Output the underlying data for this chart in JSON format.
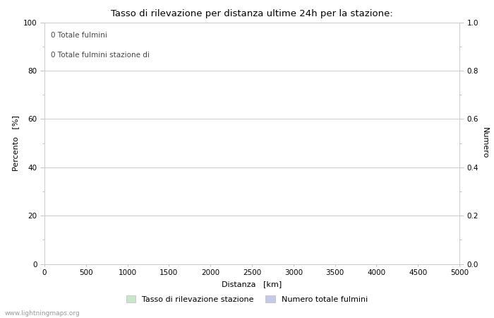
{
  "title": "Tasso di rilevazione per distanza ultime 24h per la stazione:",
  "xlabel": "Distanza   [km]",
  "ylabel_left": "Percento   [%]",
  "ylabel_right": "Numero",
  "annotation_line1": "0 Totale fulmini",
  "annotation_line2": "0 Totale fulmini stazione di",
  "xlim": [
    0,
    5000
  ],
  "ylim_left": [
    0,
    100
  ],
  "ylim_right": [
    0,
    1.0
  ],
  "xticks": [
    0,
    500,
    1000,
    1500,
    2000,
    2500,
    3000,
    3500,
    4000,
    4500,
    5000
  ],
  "yticks_left": [
    0,
    20,
    40,
    60,
    80,
    100
  ],
  "yticks_right": [
    0.0,
    0.2,
    0.4,
    0.6,
    0.8,
    1.0
  ],
  "yticks_left_minor": [
    10,
    30,
    50,
    70,
    90
  ],
  "yticks_right_minor": [
    0.1,
    0.3,
    0.5,
    0.7,
    0.9
  ],
  "legend_label1": "Tasso di rilevazione stazione",
  "legend_label2": "Numero totale fulmini",
  "legend_color1": "#c8e6c9",
  "legend_color2": "#c5cae9",
  "watermark": "www.lightningmaps.org",
  "bg_color": "#ffffff",
  "grid_color": "#cccccc",
  "title_fontsize": 9.5,
  "label_fontsize": 8,
  "tick_fontsize": 7.5,
  "annotation_fontsize": 7.5,
  "legend_fontsize": 8
}
